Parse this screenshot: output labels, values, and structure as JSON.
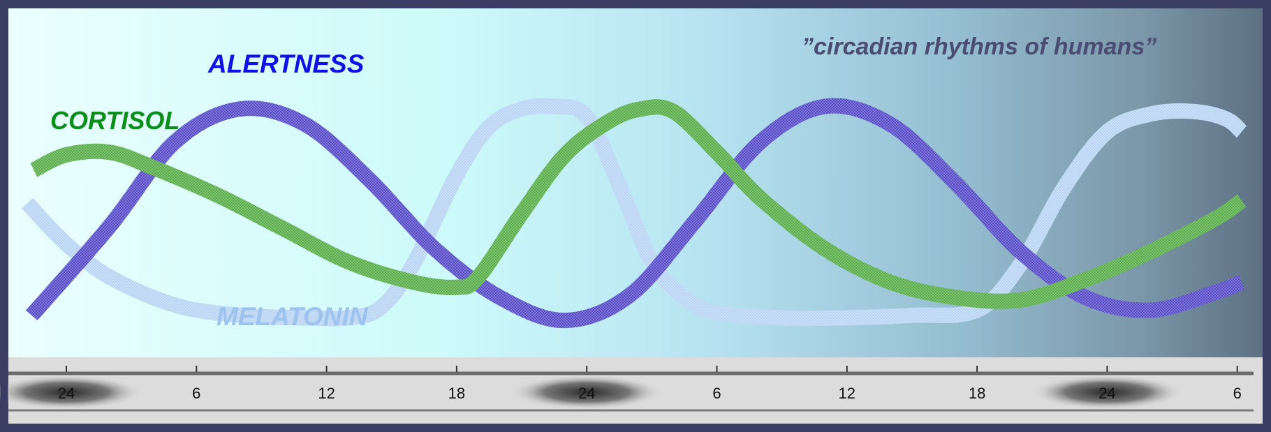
{
  "chart_data": {
    "type": "line",
    "title": "”circadian rhythms of humans”",
    "xlabel": "",
    "ylabel": "",
    "x_unit": "hour of day (continuous from first midnight)",
    "x_ticks": [
      {
        "x": 0,
        "label": "24"
      },
      {
        "x": 6,
        "label": "6"
      },
      {
        "x": 12,
        "label": "12"
      },
      {
        "x": 18,
        "label": "18"
      },
      {
        "x": 24,
        "label": "24"
      },
      {
        "x": 30,
        "label": "6"
      },
      {
        "x": 36,
        "label": "12"
      },
      {
        "x": 42,
        "label": "18"
      },
      {
        "x": 48,
        "label": "24"
      },
      {
        "x": 54,
        "label": "6"
      }
    ],
    "xlim": [
      -2.1,
      54.4
    ],
    "ylim": [
      0,
      100
    ],
    "y_axis_visible": false,
    "night_bands_at": [
      0,
      24,
      48
    ],
    "series": [
      {
        "name": "ALERTNESS",
        "color": "#4b3fc4",
        "label_color": "#1010e8",
        "x": [
          -1.6,
          2,
          5,
          8,
          11,
          14,
          17,
          20,
          23,
          26,
          29,
          32,
          35,
          38,
          41,
          44,
          47,
          50,
          53,
          54.2
        ],
        "y": [
          5,
          40,
          73,
          86,
          80,
          58,
          31,
          12,
          3,
          13,
          42,
          73,
          87,
          80,
          57,
          30,
          12,
          7,
          14,
          18
        ]
      },
      {
        "name": "CORTISOL",
        "color": "#4ea83c",
        "label_color": "#0a8f1a",
        "x": [
          -1.5,
          0,
          2,
          4,
          7,
          10,
          13,
          16,
          18,
          19,
          21,
          23,
          25,
          26.5,
          28,
          30,
          32,
          35,
          38,
          41,
          44,
          47,
          50,
          53,
          54.2
        ],
        "y": [
          62,
          68,
          69,
          63,
          52,
          39,
          26,
          18,
          16,
          20,
          45,
          68,
          81,
          86,
          85,
          69,
          51,
          31,
          18,
          12,
          11,
          19,
          30,
          43,
          50
        ]
      },
      {
        "name": "MELATONIN",
        "color": "#b4d2f2",
        "label_color": "#9fc3ef",
        "x": [
          -1.8,
          0,
          2,
          5,
          8,
          11,
          13,
          14.5,
          16,
          18,
          19.5,
          21,
          22.5,
          24,
          25.5,
          27,
          28.5,
          30,
          33,
          36,
          39,
          42,
          44,
          46,
          48,
          50,
          52,
          53.5,
          54.2
        ],
        "y": [
          49,
          33,
          20,
          9,
          5,
          4,
          4,
          8,
          25,
          60,
          79,
          86,
          87,
          83,
          56,
          26,
          12,
          6,
          4,
          4,
          5,
          7,
          25,
          55,
          77,
          84,
          85,
          82,
          77
        ]
      }
    ],
    "labels": {
      "alertness": "ALERTNESS",
      "cortisol": "CORTISOL",
      "melatonin": "MELATONIN"
    }
  }
}
